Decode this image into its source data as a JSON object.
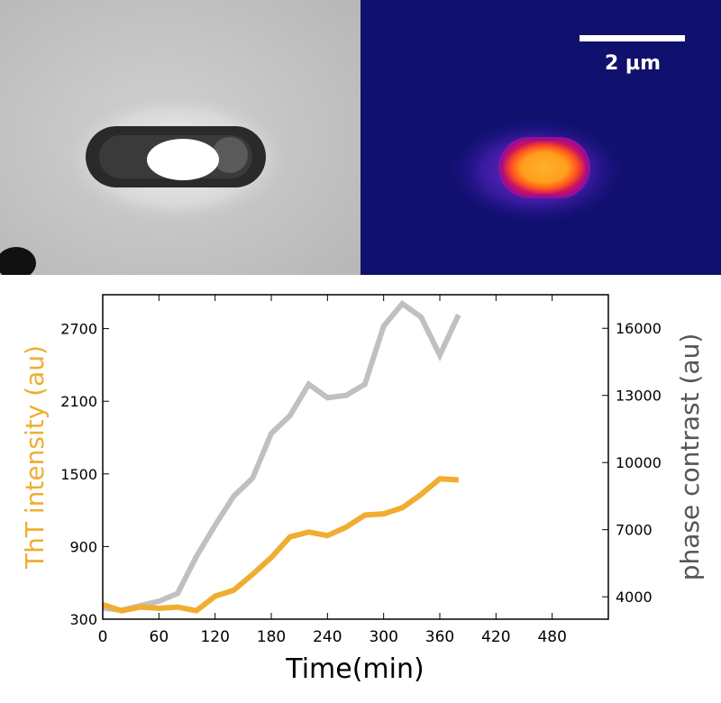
{
  "images": {
    "phase_contrast": {
      "icon": "bacterium-phase-contrast-image"
    },
    "fluorescence": {
      "icon": "bacterium-fluorescence-image",
      "scale_bar_label": "2 µm"
    }
  },
  "colors": {
    "tht": "#f0ad30",
    "phase": "#c0c0c0",
    "left_label": "#f0ad30",
    "right_label": "#555555"
  },
  "chart_data": {
    "type": "line",
    "xlabel": "Time(min)",
    "ylabel_left": "ThT intensity (au)",
    "ylabel_right": "phase contrast (au)",
    "xlim": [
      0,
      540
    ],
    "xticks": [
      0,
      60,
      120,
      180,
      240,
      300,
      360,
      420,
      480
    ],
    "ylim_left": [
      300,
      2980
    ],
    "yticks_left": [
      300,
      900,
      1500,
      2100,
      2700
    ],
    "ylim_right": [
      3000,
      17500
    ],
    "yticks_right": [
      4000,
      7000,
      10000,
      13000,
      16000
    ],
    "grid": false,
    "series": [
      {
        "axis": "left",
        "color": "#f0ad30",
        "x": [
          0,
          20,
          40,
          60,
          80,
          100,
          120,
          140,
          160,
          180,
          200,
          220,
          240,
          260,
          280,
          300,
          320,
          340,
          360,
          380
        ],
        "values": [
          420,
          370,
          400,
          390,
          400,
          370,
          490,
          540,
          670,
          810,
          980,
          1020,
          990,
          1060,
          1160,
          1170,
          1220,
          1330,
          1460,
          1450
        ]
      },
      {
        "axis": "right",
        "color": "#c0c0c0",
        "x": [
          0,
          20,
          40,
          60,
          80,
          100,
          120,
          140,
          160,
          180,
          200,
          220,
          240,
          260,
          280,
          300,
          320,
          340,
          360,
          380
        ],
        "values": [
          3500,
          3400,
          3600,
          3800,
          4150,
          5800,
          7200,
          8500,
          9300,
          11300,
          12100,
          13500,
          12900,
          13000,
          13500,
          16100,
          17100,
          16500,
          14800,
          16600
        ]
      }
    ]
  }
}
